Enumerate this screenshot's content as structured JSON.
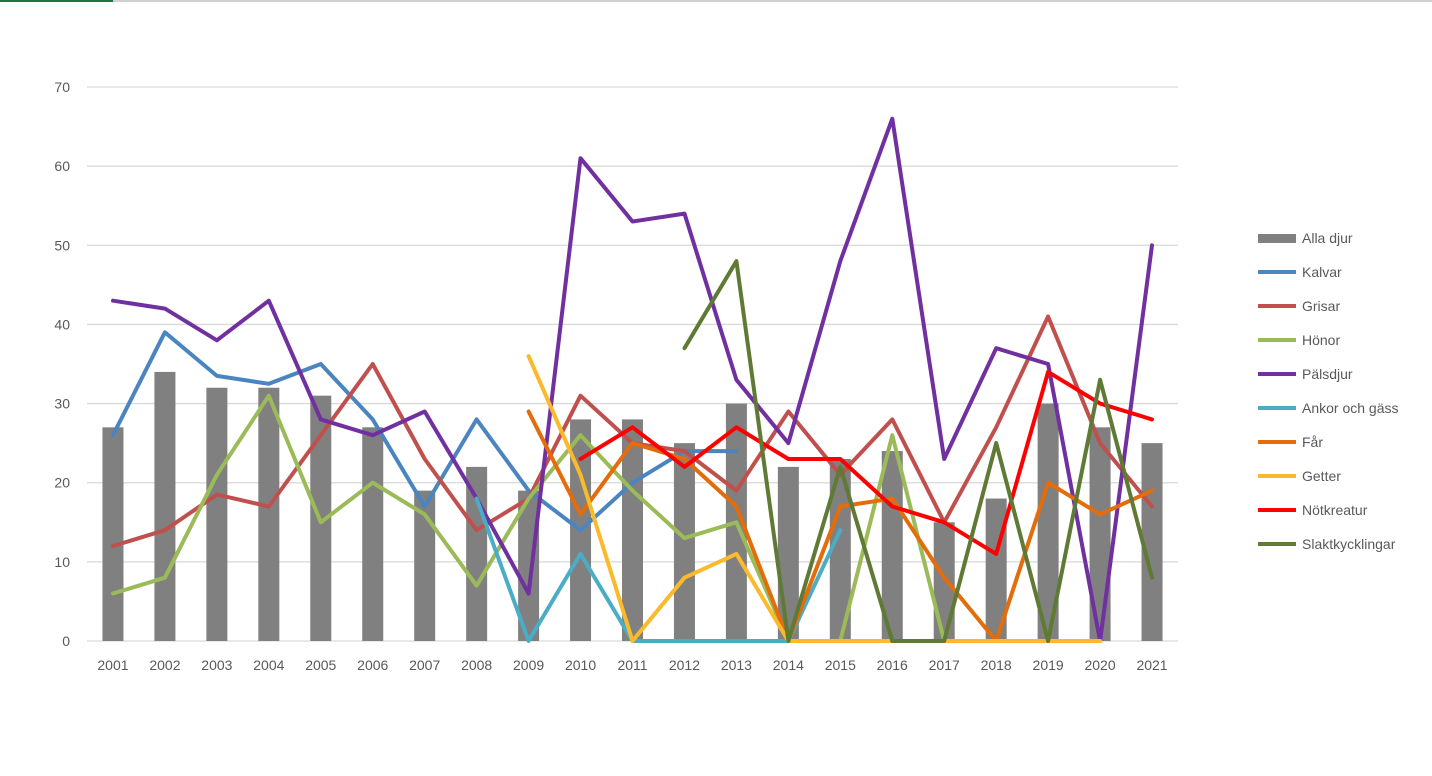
{
  "chart_data": {
    "type": "bar+line",
    "title": "",
    "xlabel": "",
    "ylabel": "",
    "ylim": [
      0,
      70
    ],
    "yticks": [
      0,
      10,
      20,
      30,
      40,
      50,
      60,
      70
    ],
    "grid": true,
    "legend_position": "right",
    "categories": [
      "2001",
      "2002",
      "2003",
      "2004",
      "2005",
      "2006",
      "2007",
      "2008",
      "2009",
      "2010",
      "2011",
      "2012",
      "2013",
      "2014",
      "2015",
      "2016",
      "2017",
      "2018",
      "2019",
      "2020",
      "2021"
    ],
    "series": [
      {
        "name": "Alla djur",
        "kind": "bar",
        "color": "#808080",
        "values": [
          27,
          34,
          32,
          32,
          31,
          27,
          19,
          22,
          19,
          28,
          28,
          25,
          30,
          22,
          23,
          24,
          15,
          18,
          30,
          27,
          25
        ]
      },
      {
        "name": "Kalvar",
        "kind": "line",
        "color": "#4a85c0",
        "values": [
          26,
          39,
          33.5,
          32.5,
          35,
          28,
          17,
          28,
          19,
          14,
          20,
          24,
          24,
          null,
          null,
          null,
          null,
          null,
          null,
          null,
          null
        ]
      },
      {
        "name": "Grisar",
        "kind": "line",
        "color": "#c0504d",
        "values": [
          12,
          14,
          18.5,
          17,
          26,
          35,
          23,
          14,
          18,
          31,
          25,
          24,
          19,
          29,
          21,
          28,
          15,
          27,
          41,
          25,
          17
        ]
      },
      {
        "name": "Hönor",
        "kind": "line",
        "color": "#9bbb59",
        "values": [
          6,
          8,
          21,
          31,
          15,
          20,
          16,
          7,
          18,
          26,
          19,
          13,
          15,
          0,
          0,
          26,
          0,
          0,
          null,
          null,
          null
        ]
      },
      {
        "name": "Pälsdjur",
        "kind": "line",
        "color": "#7030a0",
        "values": [
          43,
          42,
          38,
          43,
          28,
          26,
          29,
          18,
          6,
          61,
          53,
          54,
          33,
          25,
          48,
          66,
          23,
          37,
          35,
          0,
          50
        ]
      },
      {
        "name": "Ankor och gäss",
        "kind": "line",
        "color": "#4bacc6",
        "values": [
          null,
          null,
          null,
          null,
          null,
          null,
          null,
          18,
          0,
          11,
          0,
          0,
          0,
          0,
          14,
          null,
          null,
          null,
          null,
          null,
          null
        ]
      },
      {
        "name": "Får",
        "kind": "line",
        "color": "#e46c0a",
        "values": [
          null,
          null,
          null,
          null,
          null,
          null,
          null,
          null,
          29,
          16,
          25,
          23,
          17,
          0,
          17,
          18,
          8,
          0,
          20,
          16,
          19
        ]
      },
      {
        "name": "Getter",
        "kind": "line",
        "color": "#fbb92c",
        "values": [
          null,
          null,
          null,
          null,
          null,
          null,
          null,
          null,
          36,
          21,
          0,
          8,
          11,
          0,
          0,
          0,
          0,
          0,
          0,
          0,
          null
        ]
      },
      {
        "name": "Nötkreatur",
        "kind": "line",
        "color": "#ff0000",
        "values": [
          null,
          null,
          null,
          null,
          null,
          null,
          null,
          null,
          null,
          23,
          27,
          22,
          27,
          23,
          23,
          17,
          15,
          11,
          34,
          30,
          28
        ]
      },
      {
        "name": "Slaktkycklingar",
        "kind": "line",
        "color": "#5e7a35",
        "values": [
          null,
          null,
          null,
          null,
          null,
          null,
          null,
          null,
          null,
          null,
          null,
          37,
          48,
          0,
          22,
          0,
          0,
          25,
          0,
          33,
          8
        ]
      }
    ]
  }
}
